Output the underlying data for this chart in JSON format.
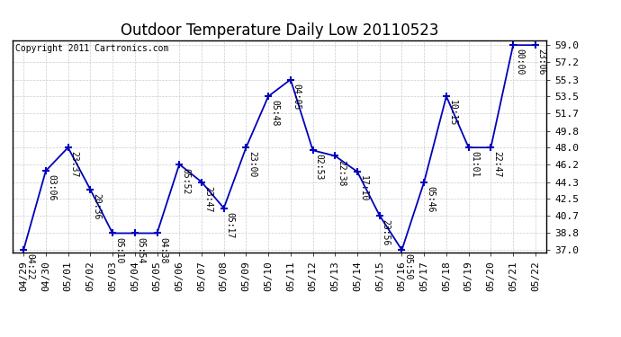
{
  "title": "Outdoor Temperature Daily Low 20110523",
  "copyright": "Copyright 2011 Cartronics.com",
  "x_labels": [
    "04/29",
    "04/30",
    "05/01",
    "05/02",
    "05/03",
    "05/04",
    "05/05",
    "05/06",
    "05/07",
    "05/08",
    "05/09",
    "05/10",
    "05/11",
    "05/12",
    "05/13",
    "05/14",
    "05/15",
    "05/16",
    "05/17",
    "05/18",
    "05/19",
    "05/20",
    "05/21",
    "05/22"
  ],
  "y_values": [
    37.0,
    45.5,
    48.0,
    43.5,
    38.8,
    38.8,
    38.8,
    46.2,
    44.3,
    41.5,
    48.0,
    53.5,
    55.3,
    47.7,
    47.1,
    45.4,
    40.7,
    37.0,
    44.3,
    53.5,
    48.0,
    48.0,
    59.0,
    59.0
  ],
  "point_labels": [
    "04:22",
    "03:06",
    "23:37",
    "20:36",
    "05:10",
    "05:54",
    "04:38",
    "05:52",
    "23:47",
    "05:17",
    "23:00",
    "05:48",
    "04:05",
    "02:53",
    "22:38",
    "17:10",
    "23:56",
    "05:50",
    "05:46",
    "10:15",
    "01:01",
    "22:47",
    "00:00",
    "23:06"
  ],
  "y_min": 37.0,
  "y_max": 59.0,
  "y_ticks": [
    37.0,
    38.8,
    40.7,
    42.5,
    44.3,
    46.2,
    48.0,
    49.8,
    51.7,
    53.5,
    55.3,
    57.2,
    59.0
  ],
  "line_color": "#0000BB",
  "marker_color": "#0000BB",
  "bg_color": "#FFFFFF",
  "grid_color": "#CCCCCC",
  "title_fontsize": 12,
  "label_fontsize": 7,
  "tick_fontsize": 8,
  "copyright_fontsize": 7
}
